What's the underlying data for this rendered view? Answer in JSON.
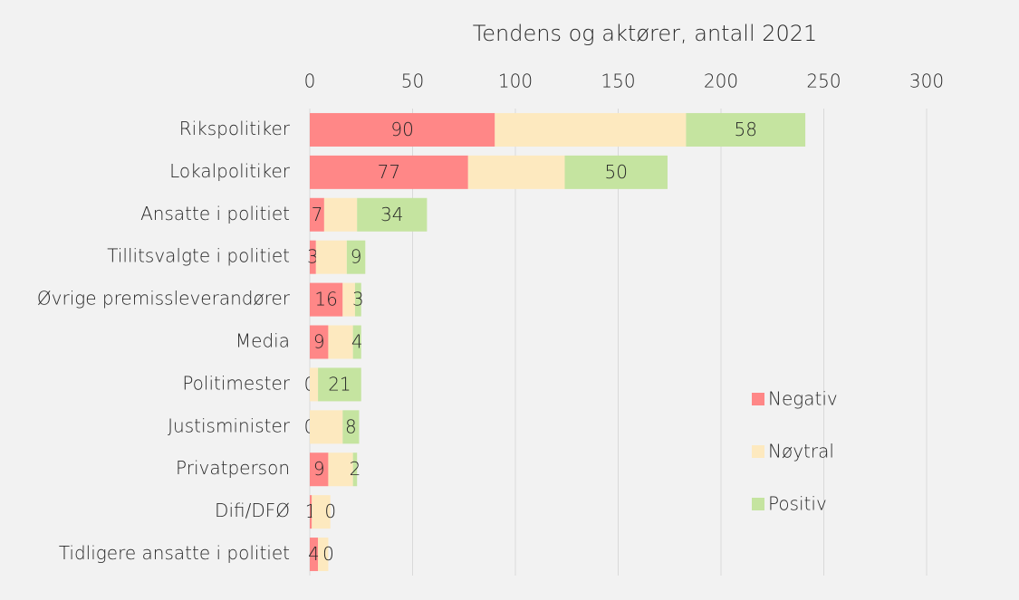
{
  "chart_data": {
    "type": "stacked_bar_horizontal",
    "title": "Tendens og aktører, antall 2021",
    "categories": [
      "Rikspolitiker",
      "Lokalpolitiker",
      "Ansatte i politiet",
      "Tillitsvalgte i politiet",
      "Øvrige premissleverandører",
      "Media",
      "Politimester",
      "Justisminister",
      "Privatperson",
      "Difi/DFØ",
      "Tidligere ansatte i politiet"
    ],
    "series": [
      {
        "name": "Negativ",
        "color": "#ff8787",
        "data_labels": true,
        "values": [
          90,
          77,
          7,
          3,
          16,
          9,
          0,
          0,
          9,
          1,
          4
        ]
      },
      {
        "name": "Nøytral",
        "color": "#fde9bf",
        "data_labels": false,
        "values": [
          93,
          47,
          16,
          15,
          6,
          12,
          4,
          16,
          12,
          9,
          5
        ]
      },
      {
        "name": "Positiv",
        "color": "#c5e4a0",
        "data_labels": true,
        "values": [
          58,
          50,
          34,
          9,
          3,
          4,
          21,
          8,
          2,
          0,
          0
        ]
      }
    ],
    "xlim": [
      0,
      300
    ],
    "xticks": [
      0,
      50,
      100,
      150,
      200,
      250,
      300
    ],
    "grid": true,
    "legend": "right"
  }
}
